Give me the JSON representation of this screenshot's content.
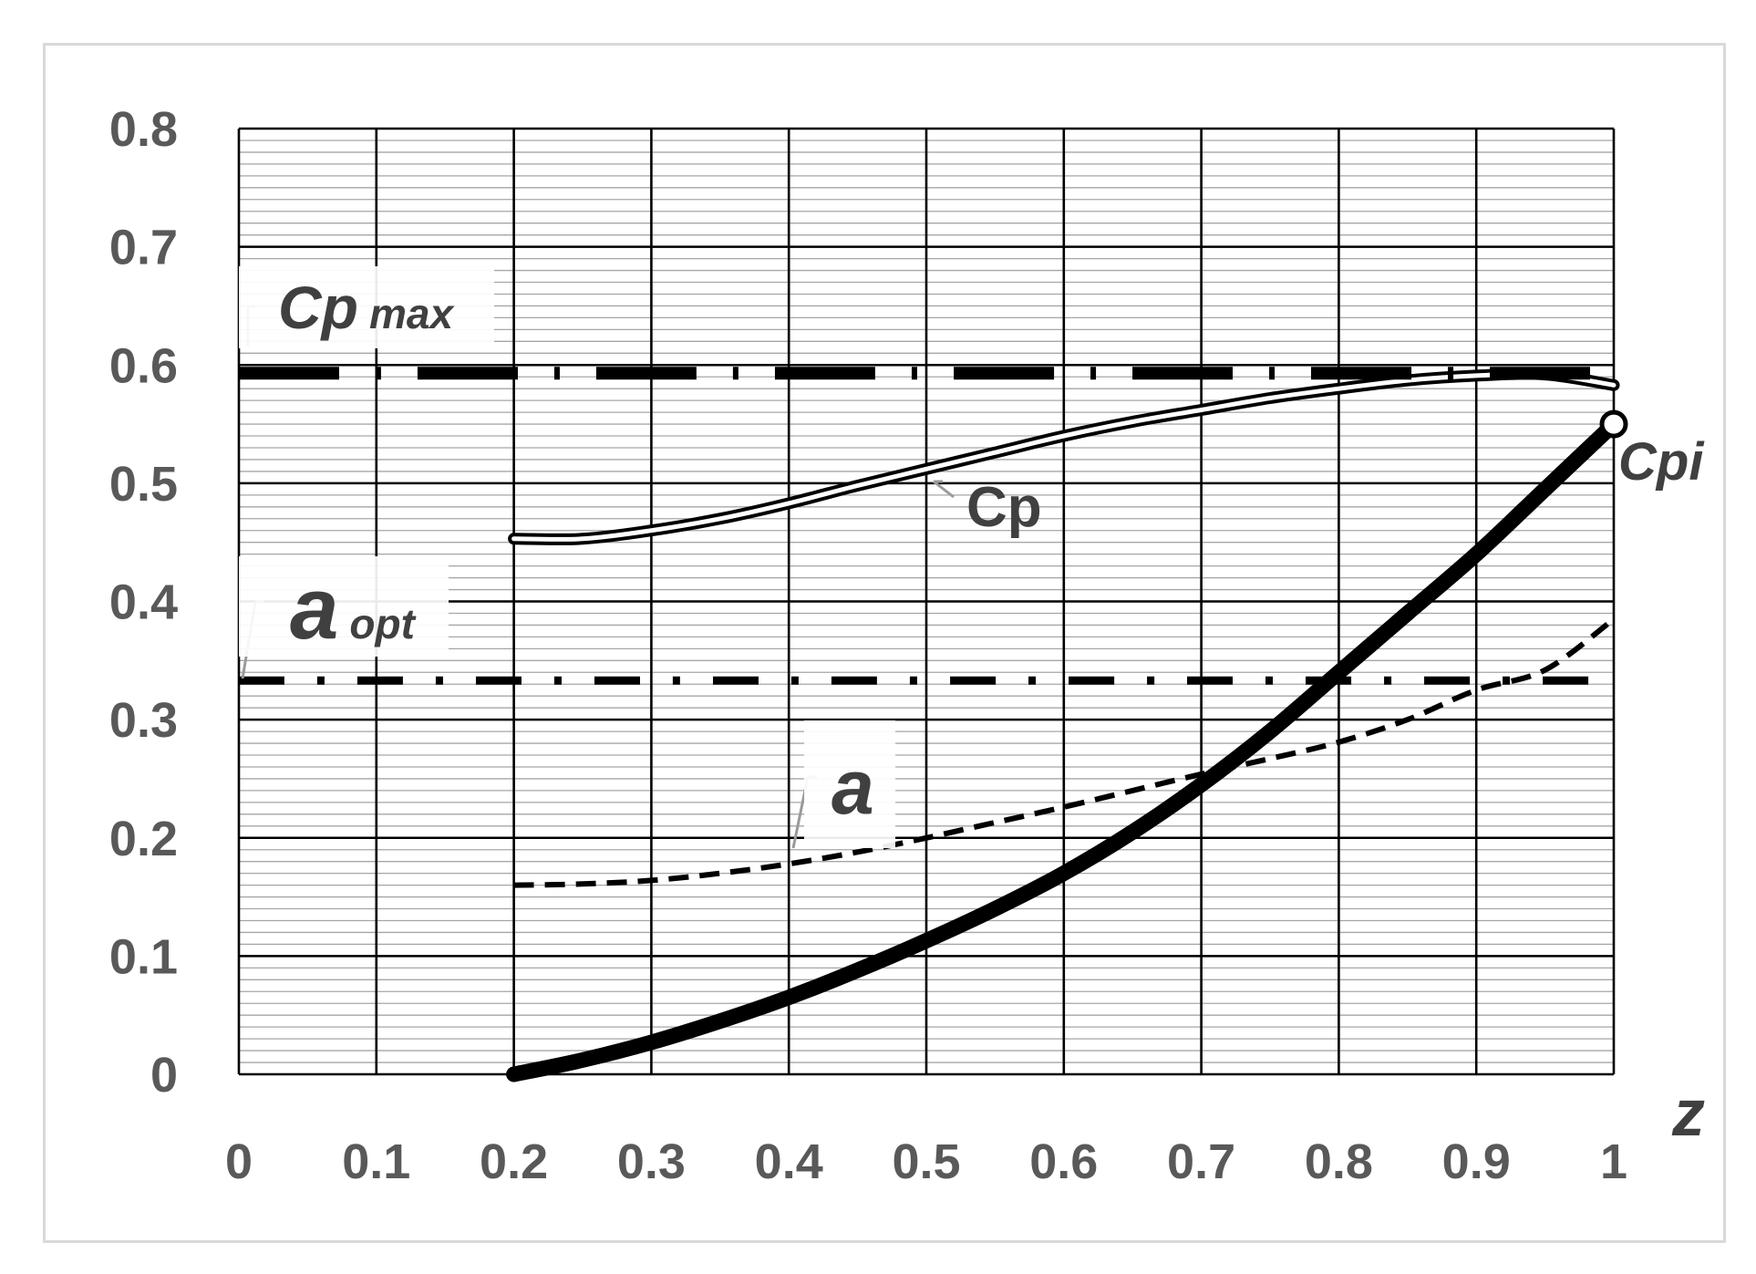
{
  "chart_data": {
    "type": "line",
    "title": "",
    "xlabel": "z",
    "ylabel": "",
    "xlim": [
      0,
      1
    ],
    "ylim": [
      0,
      0.8
    ],
    "x_ticks": [
      "0",
      "0.1",
      "0.2",
      "0.3",
      "0.4",
      "0.5",
      "0.6",
      "0.7",
      "0.8",
      "0.9",
      "1"
    ],
    "y_ticks": [
      "0",
      "0.1",
      "0.2",
      "0.3",
      "0.4",
      "0.5",
      "0.6",
      "0.7",
      "0.8"
    ],
    "grid": {
      "major": true,
      "minor_y": true
    },
    "series": [
      {
        "name": "Cp",
        "style": "double-line",
        "x": [
          0.2,
          0.25,
          0.3,
          0.35,
          0.4,
          0.45,
          0.5,
          0.55,
          0.6,
          0.65,
          0.7,
          0.75,
          0.8,
          0.85,
          0.9,
          0.95,
          1.0
        ],
        "y": [
          0.453,
          0.453,
          0.46,
          0.47,
          0.483,
          0.498,
          0.512,
          0.526,
          0.54,
          0.552,
          0.562,
          0.572,
          0.58,
          0.587,
          0.591,
          0.592,
          0.583
        ]
      },
      {
        "name": "a",
        "style": "dashed",
        "x": [
          0.2,
          0.25,
          0.3,
          0.35,
          0.4,
          0.45,
          0.5,
          0.55,
          0.6,
          0.65,
          0.7,
          0.75,
          0.8,
          0.85,
          0.9,
          0.95,
          1.0
        ],
        "y": [
          0.16,
          0.161,
          0.164,
          0.17,
          0.178,
          0.188,
          0.2,
          0.213,
          0.226,
          0.24,
          0.254,
          0.267,
          0.281,
          0.3,
          0.325,
          0.342,
          0.385
        ]
      },
      {
        "name": "Cp max",
        "style": "dash-dot-heavy",
        "x": [
          0,
          1
        ],
        "y": [
          0.593,
          0.593
        ]
      },
      {
        "name": "a opt",
        "style": "dash-dot",
        "x": [
          0,
          1
        ],
        "y": [
          0.333,
          0.333
        ]
      },
      {
        "name": "Cpi",
        "style": "thick",
        "x": [
          0.2,
          0.25,
          0.3,
          0.35,
          0.4,
          0.45,
          0.5,
          0.55,
          0.6,
          0.65,
          0.7,
          0.75,
          0.8,
          0.85,
          0.9,
          0.95,
          1.0
        ],
        "y": [
          0.0,
          0.012,
          0.027,
          0.045,
          0.065,
          0.088,
          0.113,
          0.14,
          0.17,
          0.205,
          0.245,
          0.29,
          0.34,
          0.39,
          0.44,
          0.495,
          0.55
        ]
      }
    ],
    "annotations": [
      {
        "text": "Cp max",
        "base": "Cp",
        "sub": "max",
        "italic": true
      },
      {
        "text": "a opt",
        "base": "a",
        "sub": "opt",
        "italic": true
      },
      {
        "text": "Cp",
        "italic": false
      },
      {
        "text": "a",
        "italic": true
      },
      {
        "text": "Cpi",
        "italic": true
      }
    ],
    "colors": {
      "lines": "#000000",
      "grid_major": "#000000",
      "grid_minor": "#a6a6a6",
      "tick_text": "#595959"
    }
  }
}
